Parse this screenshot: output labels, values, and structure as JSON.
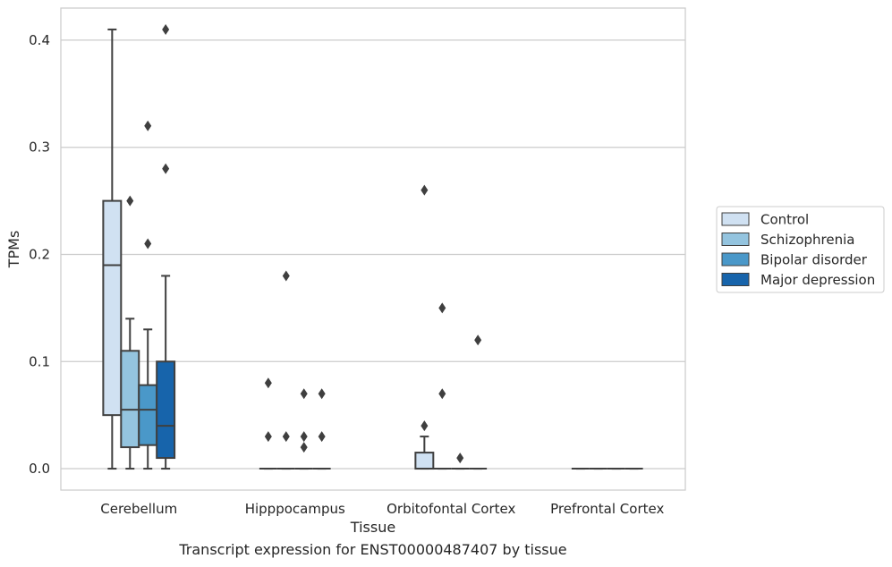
{
  "caption": "Transcript expression for ENST00000487407 by tissue",
  "chart_data": {
    "type": "box",
    "xlabel": "Tissue",
    "ylabel": "TPMs",
    "ylim": [
      -0.02,
      0.43
    ],
    "yticks": [
      0.0,
      0.1,
      0.2,
      0.3,
      0.4
    ],
    "ytick_labels": [
      "0.0",
      "0.1",
      "0.2",
      "0.3",
      "0.4"
    ],
    "grid": "horizontal",
    "legend_position": "right",
    "categories": [
      "Cerebellum",
      "Hipppocampus",
      "Orbitofontal Cortex",
      "Prefrontal Cortex"
    ],
    "series": [
      {
        "name": "Control",
        "color": "#d0e1f2",
        "boxes": [
          {
            "whislo": 0.0,
            "q1": 0.05,
            "med": 0.19,
            "q3": 0.25,
            "whishi": 0.41,
            "fliers": []
          },
          {
            "whislo": 0.0,
            "q1": 0.0,
            "med": 0.0,
            "q3": 0.0,
            "whishi": 0.0,
            "fliers": [
              0.03,
              0.08
            ]
          },
          {
            "whislo": 0.0,
            "q1": 0.0,
            "med": 0.0,
            "q3": 0.015,
            "whishi": 0.03,
            "fliers": [
              0.04,
              0.26
            ]
          },
          {
            "whislo": 0.0,
            "q1": 0.0,
            "med": 0.0,
            "q3": 0.0,
            "whishi": 0.0,
            "fliers": []
          }
        ]
      },
      {
        "name": "Schizophrenia",
        "color": "#94c4df",
        "boxes": [
          {
            "whislo": 0.0,
            "q1": 0.02,
            "med": 0.055,
            "q3": 0.11,
            "whishi": 0.14,
            "fliers": [
              0.25
            ]
          },
          {
            "whislo": 0.0,
            "q1": 0.0,
            "med": 0.0,
            "q3": 0.0,
            "whishi": 0.0,
            "fliers": [
              0.03,
              0.18
            ]
          },
          {
            "whislo": 0.0,
            "q1": 0.0,
            "med": 0.0,
            "q3": 0.0,
            "whishi": 0.0,
            "fliers": [
              0.07,
              0.15
            ]
          },
          {
            "whislo": 0.0,
            "q1": 0.0,
            "med": 0.0,
            "q3": 0.0,
            "whishi": 0.0,
            "fliers": []
          }
        ]
      },
      {
        "name": "Bipolar disorder",
        "color": "#4a98c9",
        "boxes": [
          {
            "whislo": 0.0,
            "q1": 0.022,
            "med": 0.055,
            "q3": 0.078,
            "whishi": 0.13,
            "fliers": [
              0.21,
              0.32
            ]
          },
          {
            "whislo": 0.0,
            "q1": 0.0,
            "med": 0.0,
            "q3": 0.0,
            "whishi": 0.0,
            "fliers": [
              0.02,
              0.03,
              0.07
            ]
          },
          {
            "whislo": 0.0,
            "q1": 0.0,
            "med": 0.0,
            "q3": 0.0,
            "whishi": 0.0,
            "fliers": [
              0.01
            ]
          },
          {
            "whislo": 0.0,
            "q1": 0.0,
            "med": 0.0,
            "q3": 0.0,
            "whishi": 0.0,
            "fliers": []
          }
        ]
      },
      {
        "name": "Major depression",
        "color": "#1764ab",
        "boxes": [
          {
            "whislo": 0.0,
            "q1": 0.01,
            "med": 0.04,
            "q3": 0.1,
            "whishi": 0.18,
            "fliers": [
              0.28,
              0.41
            ]
          },
          {
            "whislo": 0.0,
            "q1": 0.0,
            "med": 0.0,
            "q3": 0.0,
            "whishi": 0.0,
            "fliers": [
              0.03,
              0.07
            ]
          },
          {
            "whislo": 0.0,
            "q1": 0.0,
            "med": 0.0,
            "q3": 0.0,
            "whishi": 0.0,
            "fliers": [
              0.12
            ]
          },
          {
            "whislo": 0.0,
            "q1": 0.0,
            "med": 0.0,
            "q3": 0.0,
            "whishi": 0.0,
            "fliers": []
          }
        ]
      }
    ]
  }
}
